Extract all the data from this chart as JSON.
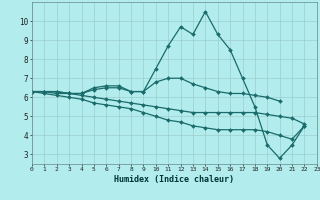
{
  "xlabel": "Humidex (Indice chaleur)",
  "background_color": "#b2ecec",
  "line_color": "#1a6b6b",
  "x_values": [
    0,
    1,
    2,
    3,
    4,
    5,
    6,
    7,
    8,
    9,
    10,
    11,
    12,
    13,
    14,
    15,
    16,
    17,
    18,
    19,
    20,
    21,
    22,
    23
  ],
  "line1": [
    6.3,
    6.3,
    6.3,
    6.2,
    6.2,
    6.5,
    6.6,
    6.6,
    6.3,
    6.3,
    7.5,
    8.7,
    9.7,
    9.3,
    10.5,
    9.3,
    8.5,
    7.0,
    5.5,
    3.5,
    2.8,
    3.5,
    4.5,
    null
  ],
  "line2": [
    6.3,
    6.3,
    6.3,
    6.2,
    6.2,
    6.4,
    6.5,
    6.5,
    6.3,
    6.3,
    6.8,
    7.0,
    7.0,
    6.7,
    6.5,
    6.3,
    6.2,
    6.2,
    6.1,
    6.0,
    5.8,
    null,
    null,
    null
  ],
  "line3": [
    6.3,
    6.3,
    6.2,
    6.2,
    6.1,
    6.0,
    5.9,
    5.8,
    5.7,
    5.6,
    5.5,
    5.4,
    5.3,
    5.2,
    5.2,
    5.2,
    5.2,
    5.2,
    5.2,
    5.1,
    5.0,
    4.9,
    4.6,
    null
  ],
  "line4": [
    6.3,
    6.2,
    6.1,
    6.0,
    5.9,
    5.7,
    5.6,
    5.5,
    5.4,
    5.2,
    5.0,
    4.8,
    4.7,
    4.5,
    4.4,
    4.3,
    4.3,
    4.3,
    4.3,
    4.2,
    4.0,
    3.8,
    4.5,
    null
  ],
  "ylim": [
    2.5,
    11.0
  ],
  "xlim": [
    0,
    23
  ],
  "yticks": [
    3,
    4,
    5,
    6,
    7,
    8,
    9,
    10
  ],
  "xticks": [
    0,
    1,
    2,
    3,
    4,
    5,
    6,
    7,
    8,
    9,
    10,
    11,
    12,
    13,
    14,
    15,
    16,
    17,
    18,
    19,
    20,
    21,
    22,
    23
  ]
}
